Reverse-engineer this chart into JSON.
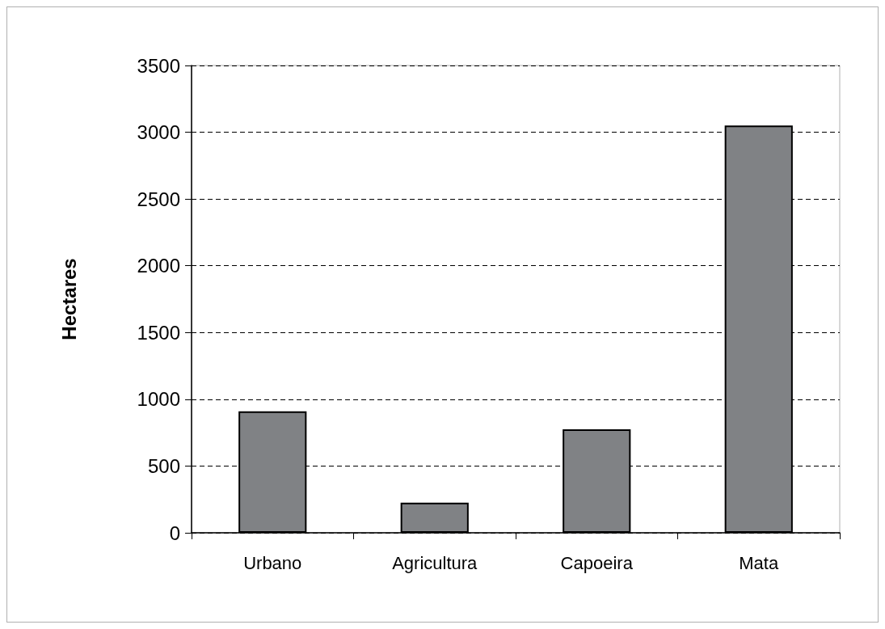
{
  "chart_data": {
    "type": "bar",
    "ylabel": "Hectares",
    "categories": [
      "Urbano",
      "Agricultura",
      "Capoeira",
      "Mata"
    ],
    "values": [
      910,
      225,
      775,
      3050
    ],
    "color": "#808285",
    "ylim": [
      0,
      3500
    ],
    "yticks": [
      0,
      500,
      1000,
      1500,
      2000,
      2500,
      3000,
      3500
    ],
    "grid": "y"
  }
}
